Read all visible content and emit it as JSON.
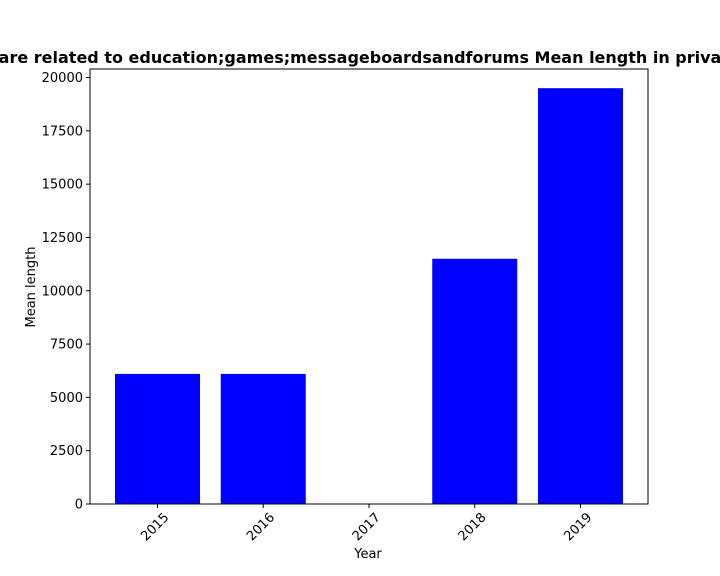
{
  "chart_data": {
    "type": "bar",
    "title": "are related to education;games;messageboardsandforums Mean length in priva",
    "xlabel": "Year",
    "ylabel": "Mean length",
    "categories": [
      "2015",
      "2016",
      "2017",
      "2018",
      "2019"
    ],
    "values": [
      6100,
      6100,
      0,
      11500,
      19500
    ],
    "ylim": [
      0,
      20400
    ],
    "yticks": [
      "0",
      "2500",
      "5000",
      "7500",
      "10000",
      "12500",
      "15000",
      "17500",
      "20000"
    ],
    "bar_color": "#0000ff",
    "grid": false,
    "legend": "none"
  }
}
